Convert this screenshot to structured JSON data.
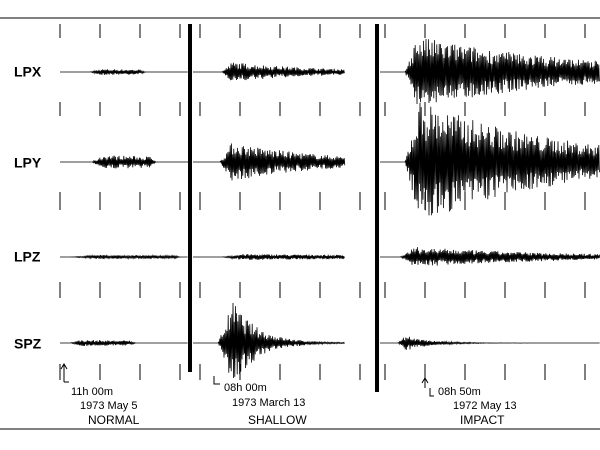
{
  "channels": [
    "LPX",
    "LPY",
    "LPZ",
    "SPZ"
  ],
  "panels": [
    {
      "time": "11h 00m",
      "date": "1973  May 5",
      "label": "NORMAL"
    },
    {
      "time": "08h 00m",
      "date": "1973 March 13",
      "label": "SHALLOW"
    },
    {
      "time": "08h 50m",
      "date": "1972 May 13",
      "label": "IMPACT"
    }
  ]
}
